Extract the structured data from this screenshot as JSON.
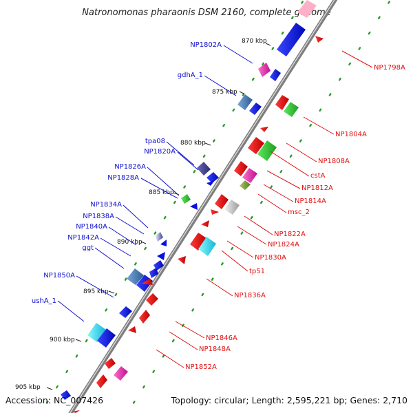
{
  "title": "Natronomonas pharaonis DSM 2160, complete genome",
  "footer": {
    "accession": "Accession: NC_007426",
    "topology": "Topology: circular; Length: 2,595,221 bp; Genes: 2,710"
  },
  "ticks": [
    "870 kbp",
    "875 kbp",
    "880 kbp",
    "885 kbp",
    "890 kbp",
    "895 kbp",
    "900 kbp",
    "905 kbp"
  ],
  "forward_labels": [
    "NP1802A",
    "gdhA_1",
    "tpa08",
    "NP1820A",
    "NP1826A",
    "NP1828A",
    "NP1834A",
    "NP1838A",
    "NP1840A",
    "NP1842A",
    "ggt",
    "NP1850A",
    "ushA_1"
  ],
  "reverse_labels": [
    "NP1798A",
    "NP1804A",
    "NP1808A",
    "cstA",
    "NP1812A",
    "NP1814A",
    "msc_2",
    "NP1822A",
    "NP1824A",
    "NP1830A",
    "tp51",
    "NP1836A",
    "NP1846A",
    "NP1848A",
    "NP1852A"
  ],
  "colors": {
    "forward_label": "#1010d0",
    "reverse_label": "#e01010",
    "forward_gene": "#0a10e0",
    "reverse_gene": "#e81010",
    "backbone": "#888888",
    "dots": "#2a9a2a"
  }
}
